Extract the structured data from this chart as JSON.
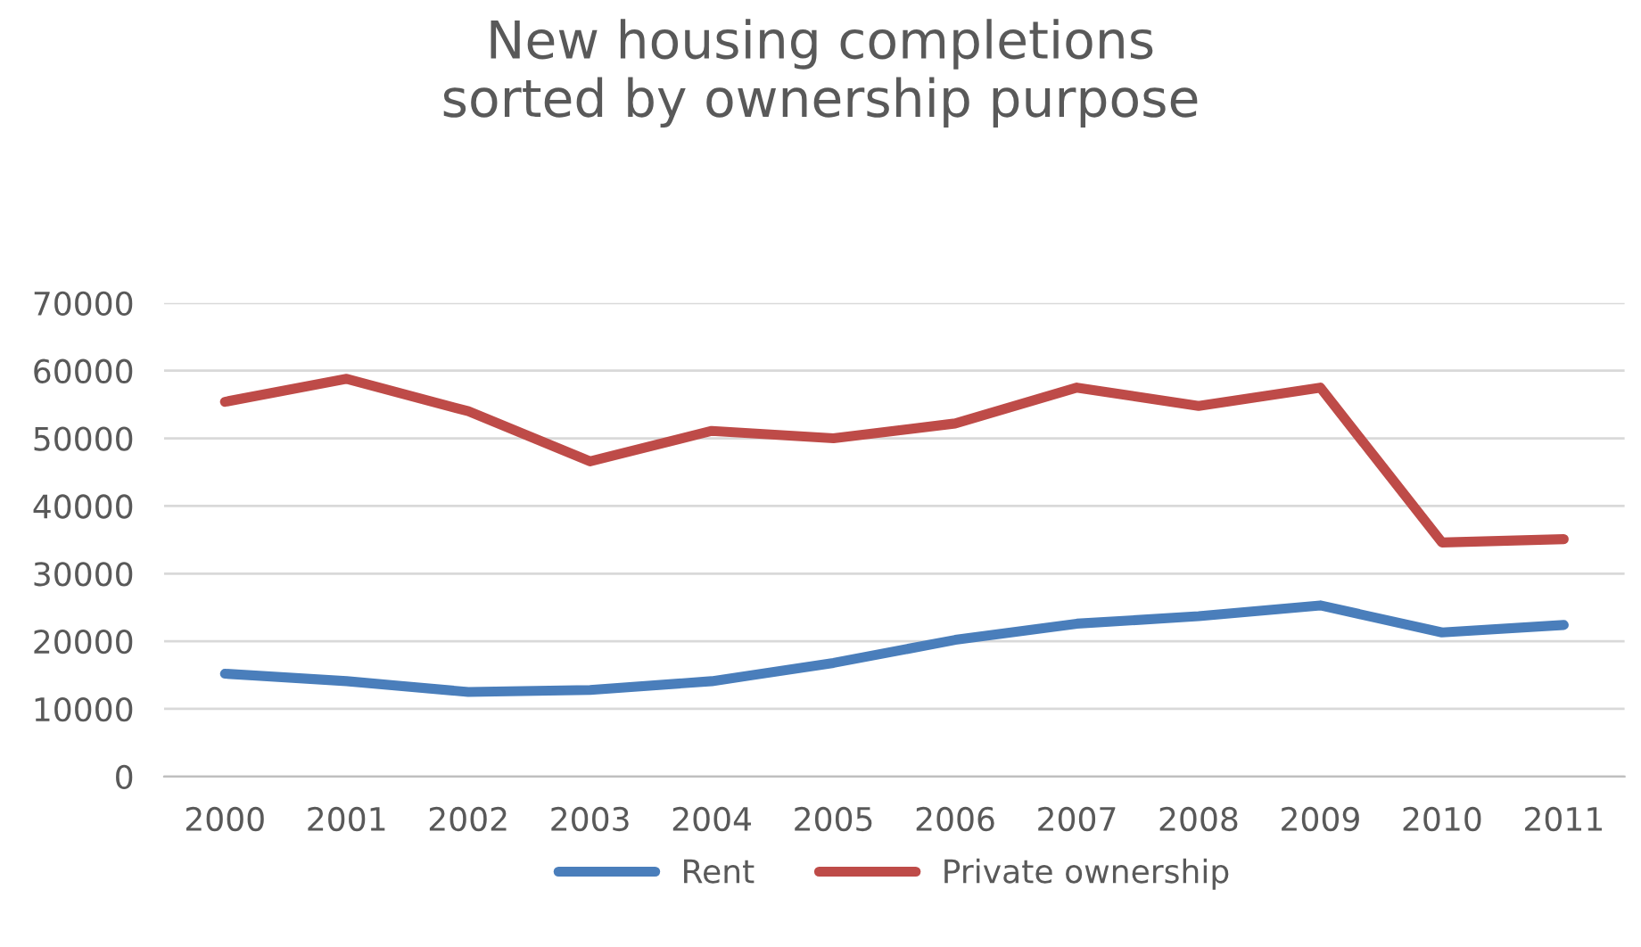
{
  "chart_data": {
    "type": "line",
    "title": "New housing completions\nsorted by ownership purpose",
    "categories": [
      "2000",
      "2001",
      "2002",
      "2003",
      "2004",
      "2005",
      "2006",
      "2007",
      "2008",
      "2009",
      "2010",
      "2011"
    ],
    "series": [
      {
        "name": "Rent",
        "color": "#4a7ebb",
        "values": [
          15200,
          14100,
          12500,
          12800,
          14100,
          16800,
          20200,
          22600,
          23700,
          25300,
          21300,
          22400
        ]
      },
      {
        "name": "Private ownership",
        "color": "#be4b48",
        "values": [
          55400,
          58800,
          54000,
          46600,
          51100,
          50000,
          52200,
          57500,
          54800,
          57500,
          34600,
          35100
        ]
      }
    ],
    "ylim": [
      0,
      70000
    ],
    "yticks": [
      0,
      10000,
      20000,
      30000,
      40000,
      50000,
      60000,
      70000
    ],
    "grid": "y",
    "legend": "bottom",
    "marker": "none",
    "line_style": "solid"
  }
}
